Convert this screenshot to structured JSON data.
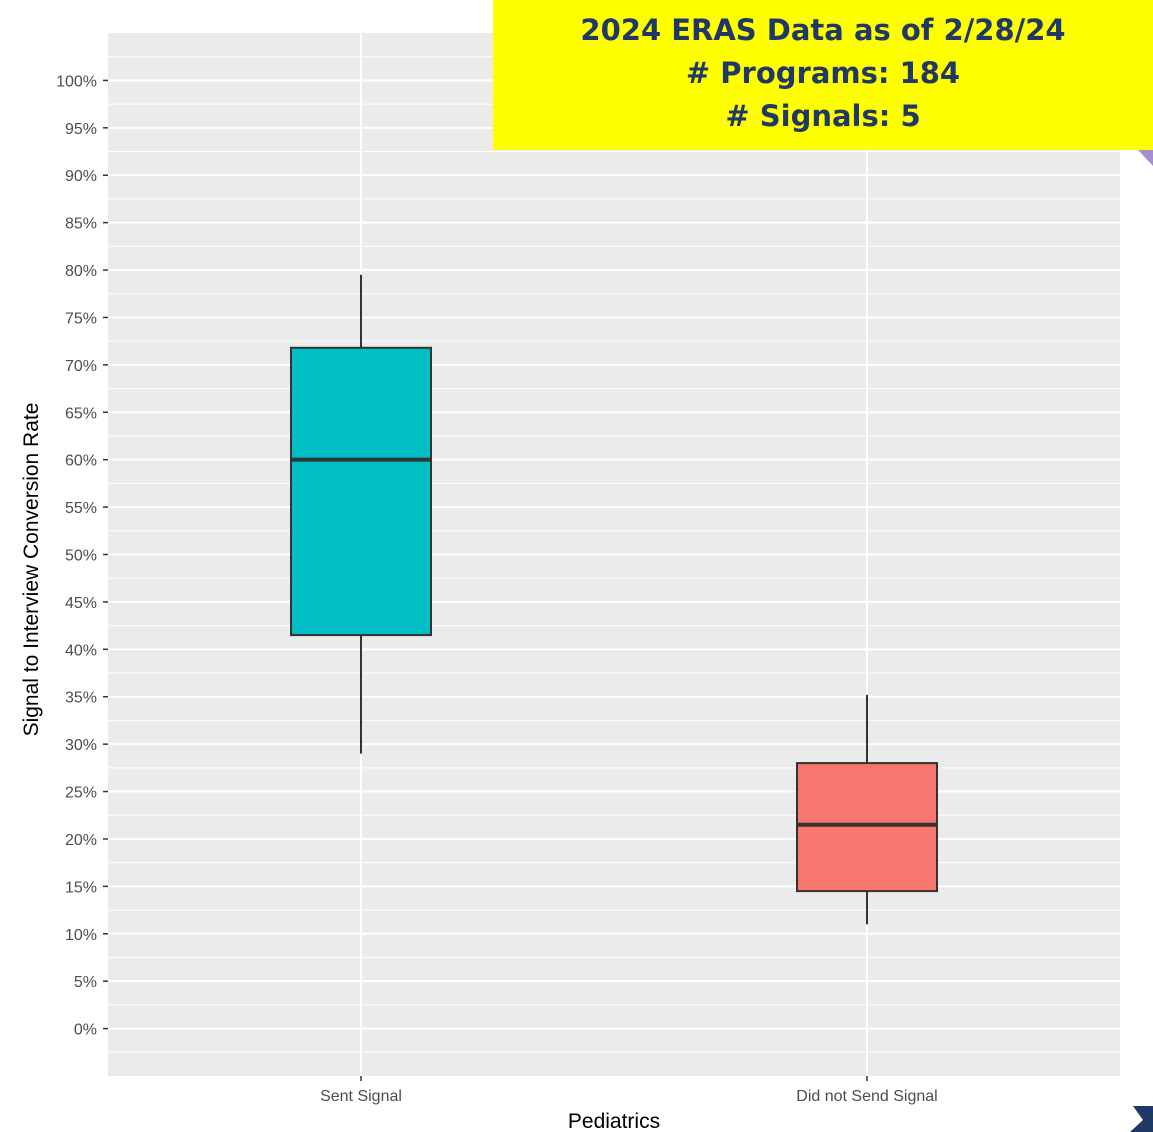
{
  "banner": {
    "line1": "2024 ERAS Data as of 2/28/24",
    "line2": "# Programs: 184",
    "line3": "# Signals: 5"
  },
  "chart_data": {
    "type": "boxplot",
    "xlabel": "Pediatrics",
    "ylabel": "Signal to Interview Conversion Rate",
    "categories": [
      "Sent Signal",
      "Did not Send Signal"
    ],
    "ylim": [
      -0.05,
      1.05
    ],
    "yticks": [
      0,
      0.05,
      0.1,
      0.15,
      0.2,
      0.25,
      0.3,
      0.35,
      0.4,
      0.45,
      0.5,
      0.55,
      0.6,
      0.65,
      0.7,
      0.75,
      0.8,
      0.85,
      0.9,
      0.95,
      1.0
    ],
    "ytick_labels": [
      "0%",
      "5%",
      "10%",
      "15%",
      "20%",
      "25%",
      "30%",
      "35%",
      "40%",
      "45%",
      "50%",
      "55%",
      "60%",
      "65%",
      "70%",
      "75%",
      "80%",
      "85%",
      "90%",
      "95%",
      "100%"
    ],
    "boxes": [
      {
        "category": "Sent Signal",
        "whisker_low": 0.29,
        "q1": 0.415,
        "median": 0.6,
        "q3": 0.718,
        "whisker_high": 0.795,
        "color": "#00bfc4"
      },
      {
        "category": "Did not Send Signal",
        "whisker_low": 0.11,
        "q1": 0.145,
        "median": 0.215,
        "q3": 0.28,
        "whisker_high": 0.352,
        "color": "#f8766d"
      }
    ],
    "grid": true,
    "panel_color": "#ebebeb"
  }
}
